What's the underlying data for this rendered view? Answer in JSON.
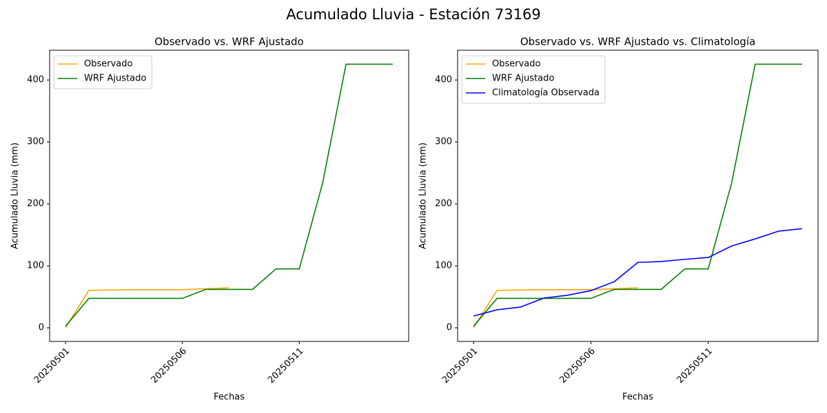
{
  "title": "Acumulado Lluvia - Estación 73169",
  "chart_data": [
    {
      "type": "line",
      "title": "Observado vs. WRF Ajustado",
      "x_label": "Fechas",
      "y_label": "Acumulado Lluvia (mm)",
      "categories": [
        "20250501",
        null,
        null,
        null,
        null,
        "20250506",
        null,
        null,
        null,
        null,
        "20250511",
        null,
        null,
        null,
        null
      ],
      "series": [
        {
          "name": "Observado",
          "color": "#ffa500",
          "values": [
            0,
            60.5,
            61,
            61.5,
            61.5,
            61.5,
            63,
            64.5,
            null,
            null,
            null,
            null,
            null,
            null,
            null
          ]
        },
        {
          "name": "WRF Ajustado",
          "color": "#008000",
          "values": [
            2.5,
            47.5,
            47.5,
            47.5,
            47.5,
            47.5,
            62,
            62,
            62,
            95,
            95,
            234,
            425.5,
            425.5,
            425.5
          ]
        }
      ],
      "ylim": [
        -22,
        448
      ],
      "yticks": [
        0,
        100,
        200,
        300,
        400
      ],
      "grid": false,
      "legend": "upper left"
    },
    {
      "type": "line",
      "title": "Observado vs. WRF Ajustado vs. Climatología",
      "x_label": "Fechas",
      "y_label": "Acumulado Lluvia (mm)",
      "categories": [
        "20250501",
        null,
        null,
        null,
        null,
        "20250506",
        null,
        null,
        null,
        null,
        "20250511",
        null,
        null,
        null,
        null
      ],
      "series": [
        {
          "name": "Observado",
          "color": "#ffa500",
          "values": [
            0,
            60.5,
            61,
            61.5,
            61.5,
            61.5,
            63,
            64.5,
            null,
            null,
            null,
            null,
            null,
            null,
            null
          ]
        },
        {
          "name": "WRF Ajustado",
          "color": "#008000",
          "values": [
            2.5,
            47.5,
            47.5,
            47.5,
            47.5,
            47.5,
            62,
            62,
            62,
            95,
            95,
            234,
            425.5,
            425.5,
            425.5
          ]
        },
        {
          "name": "Climatología Observada",
          "color": "#0000ff",
          "values": [
            19,
            29,
            33.5,
            48,
            52.5,
            60,
            74.5,
            105.5,
            107,
            110.5,
            113.5,
            132,
            143.5,
            156,
            160
          ]
        }
      ],
      "ylim": [
        -22,
        448
      ],
      "yticks": [
        0,
        100,
        200,
        300,
        400
      ],
      "grid": false,
      "legend": "upper left"
    }
  ]
}
